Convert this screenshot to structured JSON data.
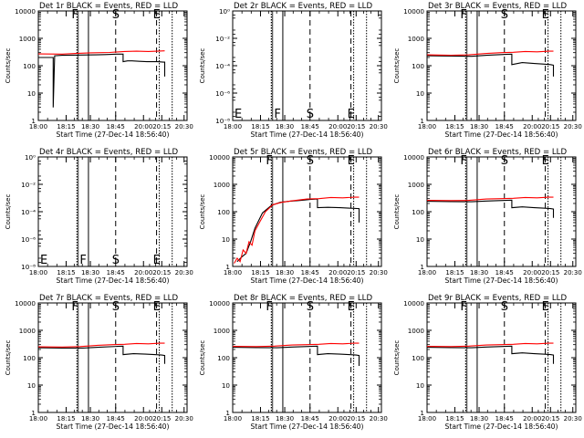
{
  "figure": {
    "x_tick_labels": [
      "18:00",
      "18:15",
      "18:30",
      "18:45",
      "20:00",
      "20:15",
      "20:30"
    ],
    "xlabel": "Start Time (27-Dec-14 18:56:40)",
    "ylabel": "Counts/sec"
  },
  "chart_data": [
    {
      "type": "line",
      "title": "Det 1r BLACK = Events, RED = LLD",
      "xlabel": "Start Time (27-Dec-14 18:56:40)",
      "ylabel": "Counts/sec",
      "yscale": "log",
      "ytick_labels": [
        "1",
        "10",
        "100",
        "1000",
        "10000"
      ],
      "markers": [
        "F",
        "S",
        "E"
      ],
      "series": [
        {
          "name": "BLACK = Events",
          "color": "#000000",
          "x": [
            0,
            1.0,
            1.0,
            1.1,
            1.6,
            1.8,
            3.9,
            4.5,
            5.3,
            5.7,
            5.7,
            6.0,
            6.3,
            6.8,
            7.3,
            8.0,
            8.4,
            8.5,
            8.5
          ],
          "y": [
            200,
            200,
            3,
            230,
            240,
            240,
            250,
            255,
            265,
            265,
            140,
            150,
            150,
            145,
            140,
            140,
            135,
            135,
            40
          ]
        },
        {
          "name": "RED = LLD",
          "color": "#ff0000",
          "x": [
            0,
            1.6,
            2.5,
            3.5,
            4.8,
            5.8,
            6.6,
            7.4,
            8.0,
            8.5
          ],
          "y": [
            270,
            265,
            280,
            295,
            305,
            330,
            340,
            330,
            340,
            350
          ]
        }
      ]
    },
    {
      "type": "line",
      "title": "Det 2r BLACK = Events, RED = LLD",
      "xlabel": "Start Time (27-Dec-14 18:56:40)",
      "ylabel": "Counts/sec",
      "yscale": "log",
      "ytick_labels": [
        "10⁻⁸",
        "10⁻⁶",
        "10⁻⁴",
        "10⁻²",
        "10⁰"
      ],
      "markers": [
        "E",
        "F",
        "S",
        "E"
      ],
      "series": []
    },
    {
      "type": "line",
      "title": "Det 3r BLACK = Events, RED = LLD",
      "xlabel": "Start Time (27-Dec-14 18:56:40)",
      "ylabel": "Counts/sec",
      "yscale": "log",
      "ytick_labels": [
        "1",
        "10",
        "100",
        "1000",
        "10000"
      ],
      "markers": [
        "F",
        "S",
        "E"
      ],
      "series": [
        {
          "name": "BLACK = Events",
          "color": "#000000",
          "x": [
            0,
            1.6,
            3.0,
            4.0,
            5.3,
            5.7,
            5.7,
            6.4,
            7.2,
            7.8,
            8.3,
            8.5,
            8.5
          ],
          "y": [
            230,
            225,
            220,
            240,
            260,
            265,
            110,
            130,
            120,
            115,
            110,
            105,
            40
          ]
        },
        {
          "name": "RED = LLD",
          "color": "#ff0000",
          "x": [
            0,
            1.6,
            2.8,
            4.0,
            5.0,
            5.8,
            6.6,
            7.4,
            8.2,
            8.5
          ],
          "y": [
            250,
            240,
            250,
            280,
            300,
            310,
            330,
            320,
            340,
            340
          ]
        }
      ]
    },
    {
      "type": "line",
      "title": "Det 4r BLACK = Events, RED = LLD",
      "xlabel": "Start Time (27-Dec-14 18:56:40)",
      "ylabel": "Counts/sec",
      "yscale": "log",
      "ytick_labels": [
        "10⁻⁸",
        "10⁻⁶",
        "10⁻⁴",
        "10⁻²",
        "10⁰"
      ],
      "markers": [
        "E",
        "F",
        "S",
        "E"
      ],
      "series": []
    },
    {
      "type": "line",
      "title": "Det 5r BLACK = Events, RED = LLD",
      "xlabel": "Start Time (27-Dec-14 18:56:40)",
      "ylabel": "Counts/sec",
      "yscale": "log",
      "ytick_labels": [
        "1",
        "10",
        "100",
        "1000",
        "10000"
      ],
      "markers": [
        "F",
        "S",
        "E"
      ],
      "series": [
        {
          "name": "BLACK = Events",
          "color": "#000000",
          "x": [
            0.3,
            0.6,
            0.9,
            1.2,
            1.5,
            2.0,
            2.6,
            3.2,
            3.8,
            4.6,
            5.2,
            5.7,
            5.7,
            6.4,
            7.2,
            7.8,
            8.5,
            8.5
          ],
          "y": [
            1.5,
            2.2,
            3,
            8,
            25,
            90,
            170,
            220,
            240,
            260,
            280,
            290,
            140,
            145,
            140,
            135,
            130,
            40
          ]
        },
        {
          "name": "RED = LLD",
          "color": "#ff0000",
          "x": [
            0.1,
            0.3,
            0.5,
            0.7,
            0.9,
            1.1,
            1.3,
            1.5,
            1.8,
            2.2,
            2.7,
            3.3,
            4.0,
            5.0,
            5.8,
            6.6,
            7.4,
            8.2,
            8.5
          ],
          "y": [
            1.3,
            2,
            1.5,
            4,
            3,
            8,
            6,
            20,
            40,
            100,
            180,
            220,
            250,
            290,
            300,
            330,
            320,
            340,
            340
          ]
        }
      ]
    },
    {
      "type": "line",
      "title": "Det 6r BLACK = Events, RED = LLD",
      "xlabel": "Start Time (27-Dec-14 18:56:40)",
      "ylabel": "Counts/sec",
      "yscale": "log",
      "ytick_labels": [
        "1",
        "10",
        "100",
        "1000",
        "10000"
      ],
      "markers": [
        "F",
        "S",
        "E"
      ],
      "series": [
        {
          "name": "BLACK = Events",
          "color": "#000000",
          "x": [
            0,
            1.6,
            3.0,
            4.0,
            5.3,
            5.7,
            5.7,
            6.4,
            7.2,
            7.8,
            8.3,
            8.5,
            8.5
          ],
          "y": [
            240,
            235,
            230,
            245,
            260,
            265,
            140,
            150,
            140,
            135,
            130,
            125,
            60
          ]
        },
        {
          "name": "RED = LLD",
          "color": "#ff0000",
          "x": [
            0,
            1.6,
            2.8,
            4.0,
            5.0,
            5.8,
            6.6,
            7.4,
            8.2,
            8.5
          ],
          "y": [
            260,
            255,
            260,
            290,
            300,
            310,
            330,
            320,
            340,
            340
          ]
        }
      ]
    },
    {
      "type": "line",
      "title": "Det 7r BLACK = Events, RED = LLD",
      "xlabel": "Start Time (27-Dec-14 18:56:40)",
      "ylabel": "Counts/sec",
      "yscale": "log",
      "ytick_labels": [
        "1",
        "10",
        "100",
        "1000",
        "10000"
      ],
      "markers": [
        "F",
        "S",
        "E"
      ],
      "series": [
        {
          "name": "BLACK = Events",
          "color": "#000000",
          "x": [
            0,
            1.6,
            3.0,
            4.0,
            5.3,
            5.7,
            5.7,
            6.4,
            7.2,
            7.8,
            8.3,
            8.5,
            8.5
          ],
          "y": [
            230,
            225,
            225,
            240,
            260,
            265,
            130,
            140,
            135,
            130,
            125,
            120,
            60
          ]
        },
        {
          "name": "RED = LLD",
          "color": "#ff0000",
          "x": [
            0,
            1.6,
            2.8,
            4.0,
            5.0,
            5.8,
            6.6,
            7.4,
            8.2,
            8.5
          ],
          "y": [
            250,
            245,
            255,
            285,
            300,
            310,
            330,
            320,
            340,
            340
          ]
        }
      ]
    },
    {
      "type": "line",
      "title": "Det 8r BLACK = Events, RED = LLD",
      "xlabel": "Start Time (27-Dec-14 18:56:40)",
      "ylabel": "Counts/sec",
      "yscale": "log",
      "ytick_labels": [
        "1",
        "10",
        "100",
        "1000",
        "10000"
      ],
      "markers": [
        "F",
        "S",
        "E"
      ],
      "series": [
        {
          "name": "BLACK = Events",
          "color": "#000000",
          "x": [
            0,
            1.6,
            3.0,
            4.0,
            5.3,
            5.7,
            5.7,
            6.4,
            7.2,
            7.8,
            8.3,
            8.5,
            8.5
          ],
          "y": [
            240,
            235,
            230,
            245,
            260,
            265,
            130,
            140,
            135,
            130,
            125,
            120,
            50
          ]
        },
        {
          "name": "RED = LLD",
          "color": "#ff0000",
          "x": [
            0,
            1.6,
            2.8,
            4.0,
            5.0,
            5.8,
            6.6,
            7.4,
            8.2,
            8.5
          ],
          "y": [
            260,
            255,
            265,
            290,
            300,
            310,
            330,
            320,
            340,
            340
          ]
        }
      ]
    },
    {
      "type": "line",
      "title": "Det 9r BLACK = Events, RED = LLD",
      "xlabel": "Start Time (27-Dec-14 18:56:40)",
      "ylabel": "Counts/sec",
      "yscale": "log",
      "ytick_labels": [
        "1",
        "10",
        "100",
        "1000",
        "10000"
      ],
      "markers": [
        "F",
        "S",
        "E"
      ],
      "series": [
        {
          "name": "BLACK = Events",
          "color": "#000000",
          "x": [
            0,
            1.6,
            3.0,
            4.0,
            5.3,
            5.7,
            5.7,
            6.4,
            7.2,
            7.8,
            8.3,
            8.5,
            8.5
          ],
          "y": [
            240,
            235,
            230,
            245,
            260,
            265,
            140,
            150,
            140,
            135,
            130,
            125,
            60
          ]
        },
        {
          "name": "RED = LLD",
          "color": "#ff0000",
          "x": [
            0,
            1.6,
            2.8,
            4.0,
            5.0,
            5.8,
            6.6,
            7.4,
            8.2,
            8.5
          ],
          "y": [
            260,
            255,
            265,
            290,
            300,
            310,
            330,
            320,
            340,
            340
          ]
        }
      ]
    }
  ]
}
